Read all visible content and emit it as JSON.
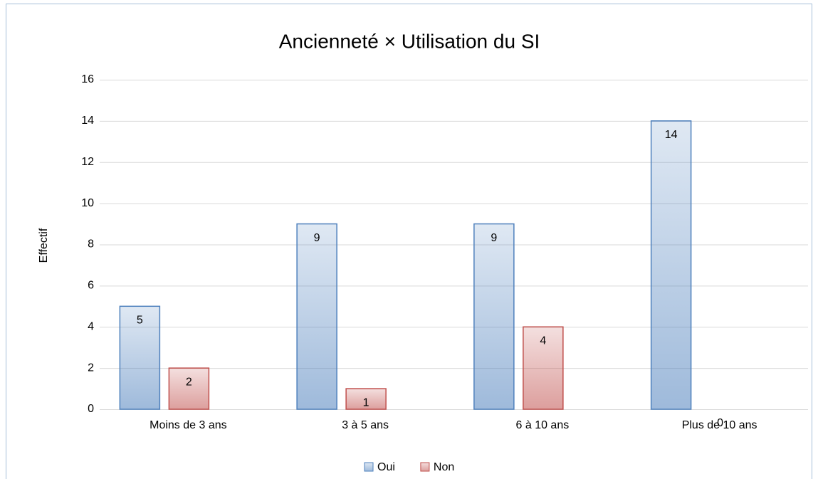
{
  "chart_data": {
    "type": "bar",
    "title": "Ancienneté × Utilisation du SI",
    "ylabel": "Effectif",
    "categories": [
      "Moins de 3 ans",
      "3 à 5 ans",
      "6 à 10 ans",
      "Plus de 10 ans"
    ],
    "series": [
      {
        "name": "Oui",
        "color": "#4f81bd",
        "values": [
          5,
          9,
          9,
          14
        ]
      },
      {
        "name": "Non",
        "color": "#c0504d",
        "values": [
          2,
          1,
          4,
          0
        ]
      }
    ],
    "ylim": [
      0,
      16
    ],
    "yticks": [
      0,
      2,
      4,
      6,
      8,
      10,
      12,
      14,
      16
    ],
    "grid": true,
    "legend": "bottom"
  }
}
